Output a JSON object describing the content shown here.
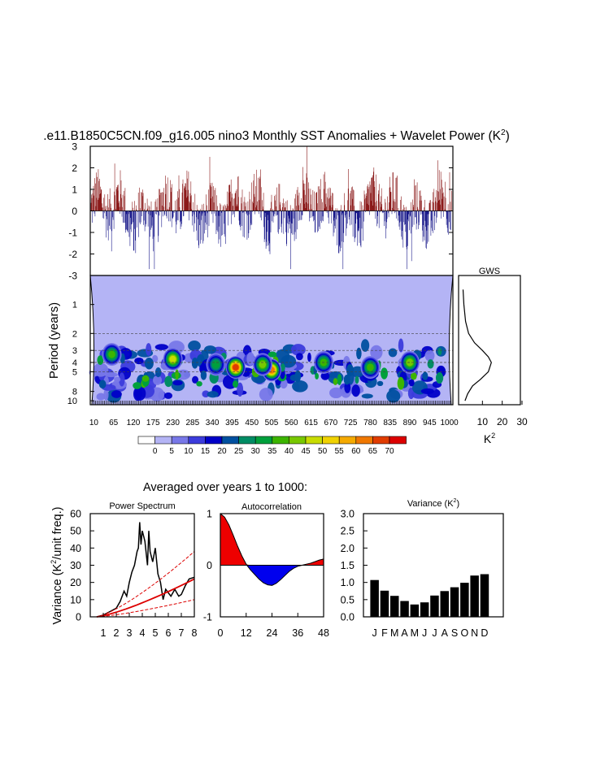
{
  "title": ".e11.B1850C5CN.f09_g16.005 nino3 Monthly SST Anomalies + Wavelet Power (K",
  "title_sup": "2",
  "title_close": ")",
  "chart_data": [
    {
      "id": "timeseries",
      "type": "bar",
      "ylim": [
        -3,
        3
      ],
      "yticks": [
        "3",
        "2",
        "1",
        "0",
        "-1",
        "-2",
        "-3"
      ],
      "ytick_values": [
        3,
        2,
        1,
        0,
        -1,
        -2,
        -3
      ],
      "positive_color": "#8b1a1a",
      "negative_color": "#1a1a8b",
      "description_series": "monthly nino3 SST anomalies, years 1-1000, roughly -2.7 to 3.0 K"
    },
    {
      "id": "wavelet",
      "type": "heatmap",
      "ylabel": "Period (years)",
      "ytick_labels": [
        "1",
        "2",
        "3",
        "4",
        "5",
        "8",
        "10"
      ],
      "ytick_values": [
        1,
        2,
        3,
        4,
        5,
        8,
        10
      ],
      "xtick_labels": [
        "10",
        "65",
        "120",
        "175",
        "230",
        "285",
        "340",
        "395",
        "450",
        "505",
        "560",
        "615",
        "670",
        "725",
        "780",
        "835",
        "890",
        "945",
        "1000"
      ],
      "colorbar_labels": [
        "0",
        "5",
        "10",
        "15",
        "20",
        "25",
        "30",
        "35",
        "40",
        "45",
        "50",
        "55",
        "60",
        "65",
        "70"
      ],
      "colorbar_colors": [
        "#ffffff",
        "#b4b4f5",
        "#7878e8",
        "#3c3cdc",
        "#0000c8",
        "#0050a0",
        "#008c64",
        "#00a03c",
        "#3cb400",
        "#78c800",
        "#c8dc00",
        "#f0d200",
        "#f5aa00",
        "#f07800",
        "#e03c00",
        "#dc0000"
      ],
      "hotspots": [
        {
          "year": 405,
          "period": 4.5,
          "level": 65
        },
        {
          "year": 505,
          "period": 4.8,
          "level": 60
        },
        {
          "year": 230,
          "period": 3.7,
          "level": 45
        },
        {
          "year": 480,
          "period": 4.2,
          "level": 40
        },
        {
          "year": 890,
          "period": 4.0,
          "level": 40
        },
        {
          "year": 780,
          "period": 4.5,
          "level": 35
        },
        {
          "year": 60,
          "period": 3.3,
          "level": 35
        },
        {
          "year": 650,
          "period": 4.0,
          "level": 35
        },
        {
          "year": 350,
          "period": 4.2,
          "level": 30
        }
      ]
    },
    {
      "id": "gws",
      "type": "line",
      "title": "GWS",
      "xtick_labels": [
        "10",
        "20",
        "30"
      ],
      "xlim": [
        0,
        30
      ],
      "xlabel": "K",
      "xlabel_sup": "2",
      "x": [
        0.2,
        0.6,
        1.5,
        3,
        6,
        10,
        13,
        14.5,
        13,
        9,
        5,
        2.5,
        1.2
      ],
      "period": [
        0.7,
        1,
        1.5,
        2,
        2.5,
        3,
        3.5,
        4,
        5,
        6,
        7,
        8.5,
        10
      ]
    },
    {
      "id": "power_spectrum",
      "type": "line",
      "title": "Power Spectrum",
      "ylabel": "Variance (K",
      "ylabel_sup": "2",
      "ylabel_end": "/unit freq.)",
      "xlim": [
        0,
        8
      ],
      "ylim": [
        0,
        60
      ],
      "xticks": [
        "1",
        "2",
        "3",
        "4",
        "5",
        "6",
        "7",
        "8"
      ],
      "yticks": [
        "0",
        "10",
        "20",
        "30",
        "40",
        "50",
        "60"
      ],
      "series": [
        {
          "name": "spectrum",
          "x": [
            0.5,
            1,
            1.5,
            2,
            2.3,
            2.6,
            2.8,
            3,
            3.2,
            3.4,
            3.6,
            3.7,
            3.8,
            3.9,
            4,
            4.2,
            4.4,
            4.5,
            4.6,
            4.8,
            5,
            5.2,
            5.4,
            5.6,
            5.8,
            6,
            6.2,
            6.5,
            6.8,
            7,
            7.3,
            7.6,
            8
          ],
          "values": [
            0,
            1,
            3,
            5,
            9,
            15,
            12,
            20,
            26,
            30,
            38,
            40,
            55,
            42,
            50,
            44,
            30,
            50,
            38,
            32,
            40,
            25,
            20,
            10,
            16,
            14,
            12,
            16,
            12,
            13,
            18,
            22,
            23
          ]
        },
        {
          "name": "red-noise",
          "x": [
            0.5,
            8
          ],
          "values": [
            0,
            22
          ]
        },
        {
          "name": "upper-95",
          "x": [
            0.5,
            8
          ],
          "values": [
            0,
            38
          ]
        },
        {
          "name": "lower-5",
          "x": [
            0.5,
            8
          ],
          "values": [
            0,
            10
          ]
        }
      ]
    },
    {
      "id": "autocorrelation",
      "type": "area",
      "title": "Autocorrelation",
      "xlim": [
        0,
        48
      ],
      "ylim": [
        -1,
        1
      ],
      "xticks": [
        "0",
        "12",
        "24",
        "36",
        "48"
      ],
      "yticks": [
        "1",
        "0",
        "-1"
      ],
      "x": [
        0,
        2,
        4,
        6,
        8,
        10,
        12,
        14,
        16,
        18,
        20,
        22,
        24,
        26,
        28,
        30,
        32,
        34,
        36,
        38,
        40,
        42,
        44,
        46,
        48
      ],
      "values": [
        1,
        0.93,
        0.78,
        0.58,
        0.37,
        0.18,
        0.02,
        -0.09,
        -0.18,
        -0.27,
        -0.34,
        -0.38,
        -0.39,
        -0.35,
        -0.28,
        -0.2,
        -0.12,
        -0.06,
        -0.02,
        0,
        0.02,
        0.04,
        0.07,
        0.1,
        0.12
      ],
      "positive_color": "#ee0000",
      "negative_color": "#0000ee"
    },
    {
      "id": "monthly_variance",
      "type": "bar",
      "title": "Variance (K",
      "title_sup": "2",
      "title_close": ")",
      "categories": [
        "J",
        "F",
        "M",
        "A",
        "M",
        "J",
        "J",
        "A",
        "S",
        "O",
        "N",
        "D"
      ],
      "values": [
        1.07,
        0.76,
        0.61,
        0.46,
        0.36,
        0.42,
        0.62,
        0.75,
        0.86,
        0.99,
        1.2,
        1.24
      ],
      "ylim": [
        0,
        3
      ],
      "yticks": [
        "0.0",
        "0.5",
        "1.0",
        "1.5",
        "2.0",
        "2.5",
        "3.0"
      ]
    }
  ],
  "averaged_title": "Averaged over years 1 to 1000:"
}
